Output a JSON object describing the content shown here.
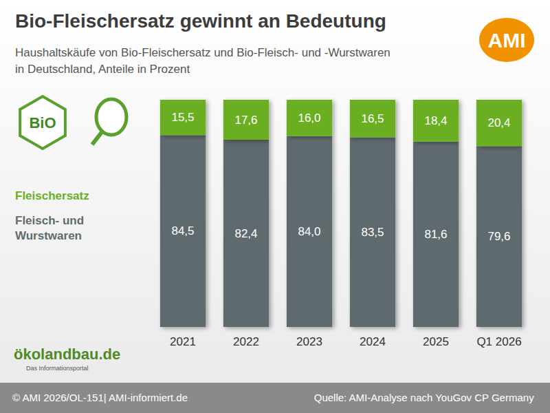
{
  "chart_data": {
    "type": "bar",
    "title": "Bio-Fleischersatz gewinnt an Bedeutung",
    "subtitle": "Haushaltskäufe von Bio-Fleischersatz und Bio-Fleisch- und -Wurstwaren in Deutschland, Anteile in Prozent",
    "categories": [
      "2021",
      "2022",
      "2023",
      "2024",
      "2025",
      "Q1 2026"
    ],
    "series": [
      {
        "name": "Fleischersatz",
        "color": "#6aaf23",
        "values": [
          15.5,
          17.6,
          16.0,
          16.5,
          18.4,
          20.4
        ],
        "value_labels": [
          "15,5",
          "17,6",
          "16,0",
          "16,5",
          "18,4",
          "20,4"
        ]
      },
      {
        "name": "Fleisch- und Wurstwaren",
        "color": "#5f6b6e",
        "values": [
          84.5,
          82.4,
          84.0,
          83.5,
          81.6,
          79.6
        ],
        "value_labels": [
          "84,5",
          "82,4",
          "84,0",
          "83,5",
          "81,6",
          "79,6"
        ]
      }
    ],
    "ylim": [
      0,
      100
    ],
    "stacked": true,
    "data_labels": true,
    "tick_labels": "x",
    "grid": false,
    "legend": "left",
    "footer": "© AMI 2026/OL-151| AMI-informiert.de",
    "source": "Quelle: AMI-Analyse nach YouGov CP Germany",
    "logos": {
      "ami": "AMI",
      "bio": "BiO",
      "portal": "ökolandbau.de",
      "portal_subtitle": "Das Informationsportal"
    }
  }
}
